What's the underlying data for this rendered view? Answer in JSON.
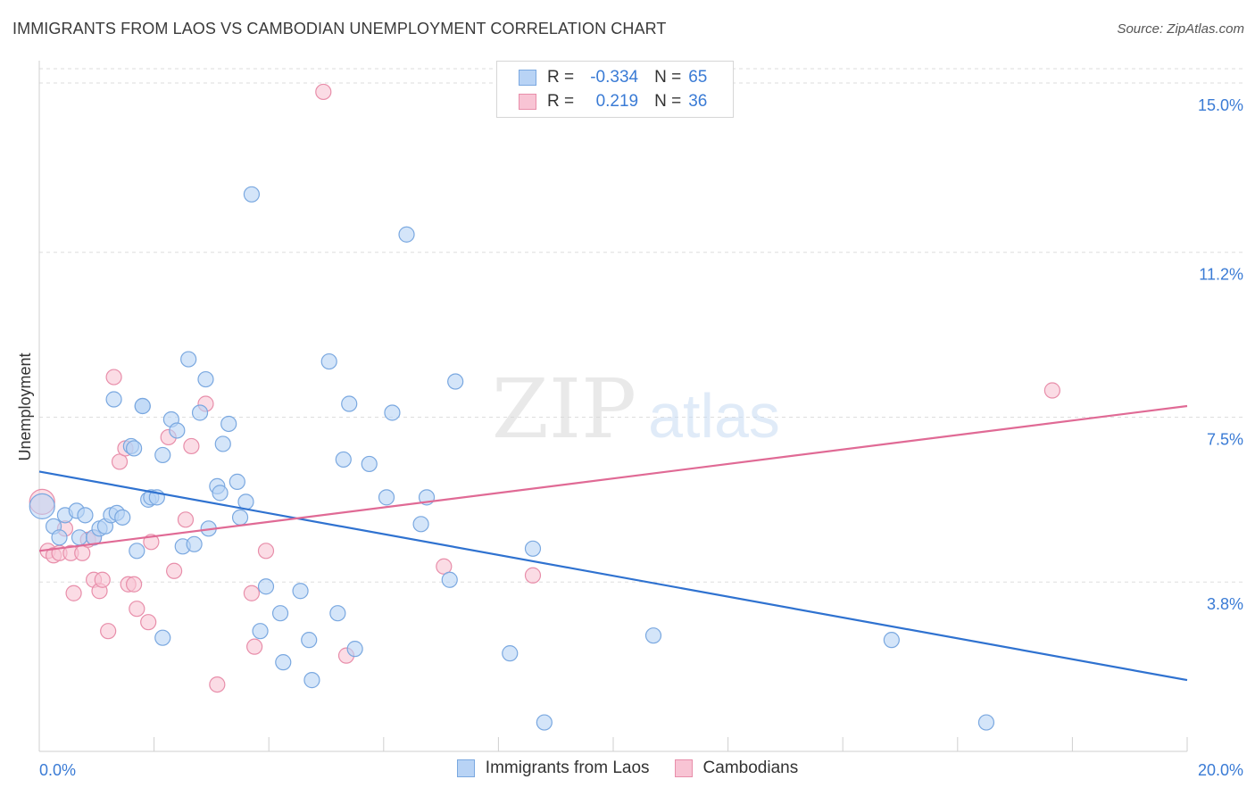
{
  "header": {
    "title": "IMMIGRANTS FROM LAOS VS CAMBODIAN UNEMPLOYMENT CORRELATION CHART",
    "source": "Source: ZipAtlas.com"
  },
  "watermark": {
    "part1": "ZIP",
    "part2": "atlas"
  },
  "legend": {
    "rows": [
      {
        "r_label": "R =",
        "r_value": "-0.334",
        "n_label": "N =",
        "n_value": "65"
      },
      {
        "r_label": "R =",
        "r_value": "0.219",
        "n_label": "N =",
        "n_value": "36"
      }
    ]
  },
  "bottom_legend": {
    "series1": "Immigrants from Laos",
    "series2": "Cambodians"
  },
  "colors": {
    "blue_fill": "#b8d3f5",
    "blue_stroke": "#7aa8e0",
    "blue_line": "#2f72d0",
    "pink_fill": "#f8c4d4",
    "pink_stroke": "#e88eaa",
    "pink_line": "#e06a95",
    "axis_text": "#3a7bd5",
    "grid": "#dddddd"
  },
  "chart_data": {
    "type": "scatter",
    "title": "IMMIGRANTS FROM LAOS VS CAMBODIAN UNEMPLOYMENT CORRELATION CHART",
    "xlabel": "",
    "ylabel": "Unemployment",
    "xlim": [
      0,
      20
    ],
    "ylim": [
      0,
      15.5
    ],
    "x_tick_labels": [
      "0.0%",
      "20.0%"
    ],
    "y_ticks": [
      3.8,
      7.5,
      11.2,
      15.0
    ],
    "y_tick_labels": [
      "3.8%",
      "7.5%",
      "11.2%",
      "15.0%"
    ],
    "grid": "horizontal dashed",
    "legend_position": "top-center",
    "series": [
      {
        "name": "Immigrants from Laos",
        "r": -0.334,
        "n": 65,
        "trend": {
          "x": [
            0,
            20
          ],
          "y": [
            6.28,
            1.6
          ]
        },
        "points": [
          {
            "x": 0.05,
            "y": 5.5,
            "big": true
          },
          {
            "x": 0.25,
            "y": 5.05
          },
          {
            "x": 0.35,
            "y": 4.8
          },
          {
            "x": 0.45,
            "y": 5.3
          },
          {
            "x": 0.65,
            "y": 5.4
          },
          {
            "x": 0.7,
            "y": 4.8
          },
          {
            "x": 0.8,
            "y": 5.3
          },
          {
            "x": 0.95,
            "y": 4.8
          },
          {
            "x": 1.05,
            "y": 5.0
          },
          {
            "x": 1.15,
            "y": 5.05
          },
          {
            "x": 1.25,
            "y": 5.3
          },
          {
            "x": 1.3,
            "y": 7.9
          },
          {
            "x": 1.35,
            "y": 5.35
          },
          {
            "x": 1.45,
            "y": 5.25
          },
          {
            "x": 1.6,
            "y": 6.85
          },
          {
            "x": 1.65,
            "y": 6.8
          },
          {
            "x": 1.7,
            "y": 4.5
          },
          {
            "x": 1.8,
            "y": 7.75
          },
          {
            "x": 1.8,
            "y": 7.75
          },
          {
            "x": 1.9,
            "y": 5.65
          },
          {
            "x": 1.95,
            "y": 5.7
          },
          {
            "x": 2.05,
            "y": 5.7
          },
          {
            "x": 2.15,
            "y": 6.65
          },
          {
            "x": 2.15,
            "y": 2.55
          },
          {
            "x": 2.3,
            "y": 7.45
          },
          {
            "x": 2.4,
            "y": 7.2
          },
          {
            "x": 2.5,
            "y": 4.6
          },
          {
            "x": 2.6,
            "y": 8.8
          },
          {
            "x": 2.7,
            "y": 4.65
          },
          {
            "x": 2.8,
            "y": 7.6
          },
          {
            "x": 2.9,
            "y": 8.35
          },
          {
            "x": 2.95,
            "y": 5.0
          },
          {
            "x": 3.1,
            "y": 5.95
          },
          {
            "x": 3.15,
            "y": 5.8
          },
          {
            "x": 3.2,
            "y": 6.9
          },
          {
            "x": 3.3,
            "y": 7.35
          },
          {
            "x": 3.45,
            "y": 6.05
          },
          {
            "x": 3.5,
            "y": 5.25
          },
          {
            "x": 3.6,
            "y": 5.6
          },
          {
            "x": 3.7,
            "y": 12.5
          },
          {
            "x": 3.85,
            "y": 2.7
          },
          {
            "x": 3.95,
            "y": 3.7
          },
          {
            "x": 4.2,
            "y": 3.1
          },
          {
            "x": 4.25,
            "y": 2.0
          },
          {
            "x": 4.55,
            "y": 3.6
          },
          {
            "x": 4.7,
            "y": 2.5
          },
          {
            "x": 4.75,
            "y": 1.6
          },
          {
            "x": 5.05,
            "y": 8.75
          },
          {
            "x": 5.2,
            "y": 3.1
          },
          {
            "x": 5.3,
            "y": 6.55
          },
          {
            "x": 5.4,
            "y": 7.8
          },
          {
            "x": 5.5,
            "y": 2.3
          },
          {
            "x": 5.75,
            "y": 6.45
          },
          {
            "x": 6.05,
            "y": 5.7
          },
          {
            "x": 6.15,
            "y": 7.6
          },
          {
            "x": 6.4,
            "y": 11.6
          },
          {
            "x": 6.65,
            "y": 5.1
          },
          {
            "x": 6.75,
            "y": 5.7
          },
          {
            "x": 7.15,
            "y": 3.85
          },
          {
            "x": 7.25,
            "y": 8.3
          },
          {
            "x": 8.2,
            "y": 2.2
          },
          {
            "x": 8.6,
            "y": 4.55
          },
          {
            "x": 8.8,
            "y": 0.65
          },
          {
            "x": 10.7,
            "y": 2.6
          },
          {
            "x": 14.85,
            "y": 2.5
          },
          {
            "x": 16.5,
            "y": 0.65
          }
        ]
      },
      {
        "name": "Cambodians",
        "r": 0.219,
        "n": 36,
        "trend": {
          "x": [
            0,
            20
          ],
          "y": [
            4.5,
            7.75
          ]
        },
        "points": [
          {
            "x": 0.05,
            "y": 5.6,
            "big": true
          },
          {
            "x": 0.15,
            "y": 4.5
          },
          {
            "x": 0.25,
            "y": 4.4
          },
          {
            "x": 0.35,
            "y": 4.45
          },
          {
            "x": 0.45,
            "y": 5.0
          },
          {
            "x": 0.55,
            "y": 4.45
          },
          {
            "x": 0.6,
            "y": 3.55
          },
          {
            "x": 0.75,
            "y": 4.45
          },
          {
            "x": 0.85,
            "y": 4.75
          },
          {
            "x": 0.95,
            "y": 4.8
          },
          {
            "x": 0.95,
            "y": 3.85
          },
          {
            "x": 1.05,
            "y": 3.6
          },
          {
            "x": 1.1,
            "y": 3.85
          },
          {
            "x": 1.2,
            "y": 2.7
          },
          {
            "x": 1.3,
            "y": 8.4
          },
          {
            "x": 1.4,
            "y": 6.5
          },
          {
            "x": 1.5,
            "y": 6.8
          },
          {
            "x": 1.55,
            "y": 3.75
          },
          {
            "x": 1.65,
            "y": 3.75
          },
          {
            "x": 1.7,
            "y": 3.2
          },
          {
            "x": 1.9,
            "y": 2.9
          },
          {
            "x": 1.95,
            "y": 4.7
          },
          {
            "x": 2.25,
            "y": 7.05
          },
          {
            "x": 2.35,
            "y": 4.05
          },
          {
            "x": 2.55,
            "y": 5.2
          },
          {
            "x": 2.65,
            "y": 6.85
          },
          {
            "x": 2.9,
            "y": 7.8
          },
          {
            "x": 3.1,
            "y": 1.5
          },
          {
            "x": 3.7,
            "y": 3.55
          },
          {
            "x": 3.75,
            "y": 2.35
          },
          {
            "x": 3.95,
            "y": 4.5
          },
          {
            "x": 4.95,
            "y": 14.8
          },
          {
            "x": 5.35,
            "y": 2.15
          },
          {
            "x": 7.05,
            "y": 4.15
          },
          {
            "x": 8.6,
            "y": 3.95
          },
          {
            "x": 17.65,
            "y": 8.1
          }
        ]
      }
    ]
  }
}
